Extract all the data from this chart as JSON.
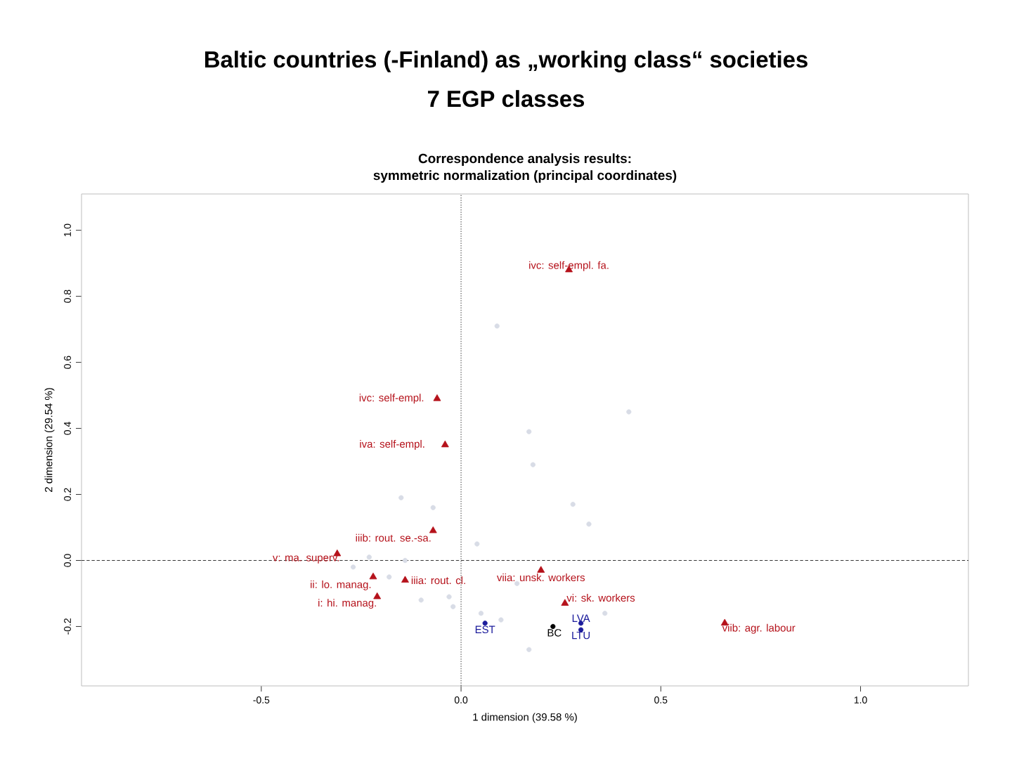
{
  "chart_data": {
    "type": "scatter",
    "title": "Baltic countries (-Finland) as „working class“ societies",
    "subtitle": "7 EGP classes",
    "xlabel": "1 dimension (39.58 %)",
    "ylabel": "2 dimension (29.54 %)",
    "xlim": [
      -0.95,
      1.27
    ],
    "ylim": [
      -0.38,
      1.11
    ],
    "xticks": [
      {
        "value": -0.5,
        "label": "-0.5"
      },
      {
        "value": 0,
        "label": "0.0"
      },
      {
        "value": 0.5,
        "label": "0.5"
      },
      {
        "value": 1,
        "label": "1.0"
      }
    ],
    "yticks": [
      {
        "value": -0.2,
        "label": "-0.2"
      },
      {
        "value": 0,
        "label": "0.0"
      },
      {
        "value": 0.2,
        "label": "0.2"
      },
      {
        "value": 0.4,
        "label": "0.4"
      },
      {
        "value": 0.6,
        "label": "0.6"
      },
      {
        "value": 0.8,
        "label": "0.8"
      },
      {
        "value": 1,
        "label": "1.0"
      }
    ],
    "series": [
      {
        "color": "#d8dce6",
        "marker": "circle",
        "x": [
          0.09,
          0.42,
          0.17,
          0.18,
          -0.15,
          -0.07,
          0.28,
          0.32,
          0.04,
          -0.27,
          -0.23,
          -0.14,
          -0.18,
          -0.1,
          -0.03,
          -0.02,
          0.05,
          0.1,
          0.14,
          0.17,
          0.36
        ],
        "values": [
          0.71,
          0.45,
          0.39,
          0.29,
          0.19,
          0.16,
          0.17,
          0.11,
          0.05,
          -0.02,
          0.01,
          0.0,
          -0.05,
          -0.12,
          -0.11,
          -0.14,
          -0.16,
          -0.18,
          -0.07,
          -0.27,
          -0.16
        ]
      },
      {
        "color": "#b5121b",
        "marker": "triangle",
        "x": [
          0.27,
          -0.06,
          -0.04,
          -0.07,
          -0.31,
          -0.22,
          -0.21,
          -0.14,
          0.2,
          0.26,
          0.66
        ],
        "values": [
          0.88,
          0.49,
          0.35,
          0.09,
          0.02,
          -0.05,
          -0.11,
          -0.06,
          -0.03,
          -0.13,
          -0.19
        ]
      },
      {
        "color": "#1c1c9c",
        "marker": "circle",
        "x": [
          0.06,
          0.3,
          0.3
        ],
        "values": [
          -0.19,
          -0.19,
          -0.21
        ]
      },
      {
        "color": "#000000",
        "marker": "circle",
        "x": [
          0.23
        ],
        "values": [
          -0.2
        ]
      }
    ],
    "annotations": [
      "Correspondence analysis results:",
      "symmetric normalization (principal coordinates)",
      {
        "text": "ivc: self-empl. fa.",
        "x": 0.27,
        "y": 0.88
      },
      {
        "text": "ivc: self-empl.",
        "x": -0.06,
        "y": 0.49
      },
      {
        "text": "iva: self-empl.",
        "x": -0.04,
        "y": 0.35
      },
      {
        "text": "iiib: rout. se.-sa.",
        "x": -0.07,
        "y": 0.09
      },
      {
        "text": "v: ma. superv.",
        "x": -0.31,
        "y": 0.02
      },
      {
        "text": "ii: lo. manag.",
        "x": -0.22,
        "y": -0.05
      },
      {
        "text": "i: hi. manag.",
        "x": -0.21,
        "y": -0.11
      },
      {
        "text": "iiia: rout. cl.",
        "x": -0.14,
        "y": -0.06
      },
      {
        "text": "viia: unsk. workers",
        "x": 0.2,
        "y": -0.03
      },
      {
        "text": "vi: sk. workers",
        "x": 0.26,
        "y": -0.13
      },
      {
        "text": "viib: agr. labour",
        "x": 0.66,
        "y": -0.19
      },
      {
        "text": "EST",
        "x": 0.06,
        "y": -0.19
      },
      {
        "text": "LVA",
        "x": 0.3,
        "y": -0.19
      },
      {
        "text": "LTU",
        "x": 0.3,
        "y": -0.21
      },
      {
        "text": "BC",
        "x": 0.23,
        "y": -0.2
      }
    ],
    "ref_lines": [
      {
        "axis": "x",
        "value": 0,
        "color": "#333333",
        "line_style": "dotted"
      },
      {
        "axis": "y",
        "value": 0,
        "color": "#333333",
        "line_style": "dashed"
      }
    ]
  }
}
